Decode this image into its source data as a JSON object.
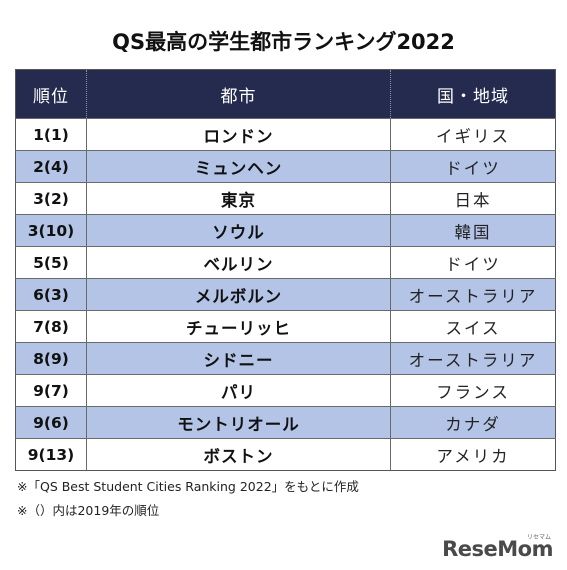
{
  "title": "QS最高の学生都市ランキング2022",
  "table": {
    "headers": [
      "順位",
      "都市",
      "国・地域"
    ],
    "rows": [
      {
        "rank": "1(1)",
        "city": "ロンドン",
        "country": "イギリス"
      },
      {
        "rank": "2(4)",
        "city": "ミュンヘン",
        "country": "ドイツ"
      },
      {
        "rank": "3(2)",
        "city": "東京",
        "country": "日本"
      },
      {
        "rank": "3(10)",
        "city": "ソウル",
        "country": "韓国"
      },
      {
        "rank": "5(5)",
        "city": "ベルリン",
        "country": "ドイツ"
      },
      {
        "rank": "6(3)",
        "city": "メルボルン",
        "country": "オーストラリア"
      },
      {
        "rank": "7(8)",
        "city": "チューリッヒ",
        "country": "スイス"
      },
      {
        "rank": "8(9)",
        "city": "シドニー",
        "country": "オーストラリア"
      },
      {
        "rank": "9(7)",
        "city": "パリ",
        "country": "フランス"
      },
      {
        "rank": "9(6)",
        "city": "モントリオール",
        "country": "カナダ"
      },
      {
        "rank": "9(13)",
        "city": "ボストン",
        "country": "アメリカ"
      }
    ]
  },
  "notes": [
    "※「QS Best Student Cities Ranking 2022」をもとに作成",
    "※（）内は2019年の順位"
  ],
  "logo": {
    "text": "ReseMom",
    "kana": "リセマム"
  },
  "colors": {
    "header_bg": "#252a4f",
    "alt_row_bg": "#b4c4e6"
  }
}
